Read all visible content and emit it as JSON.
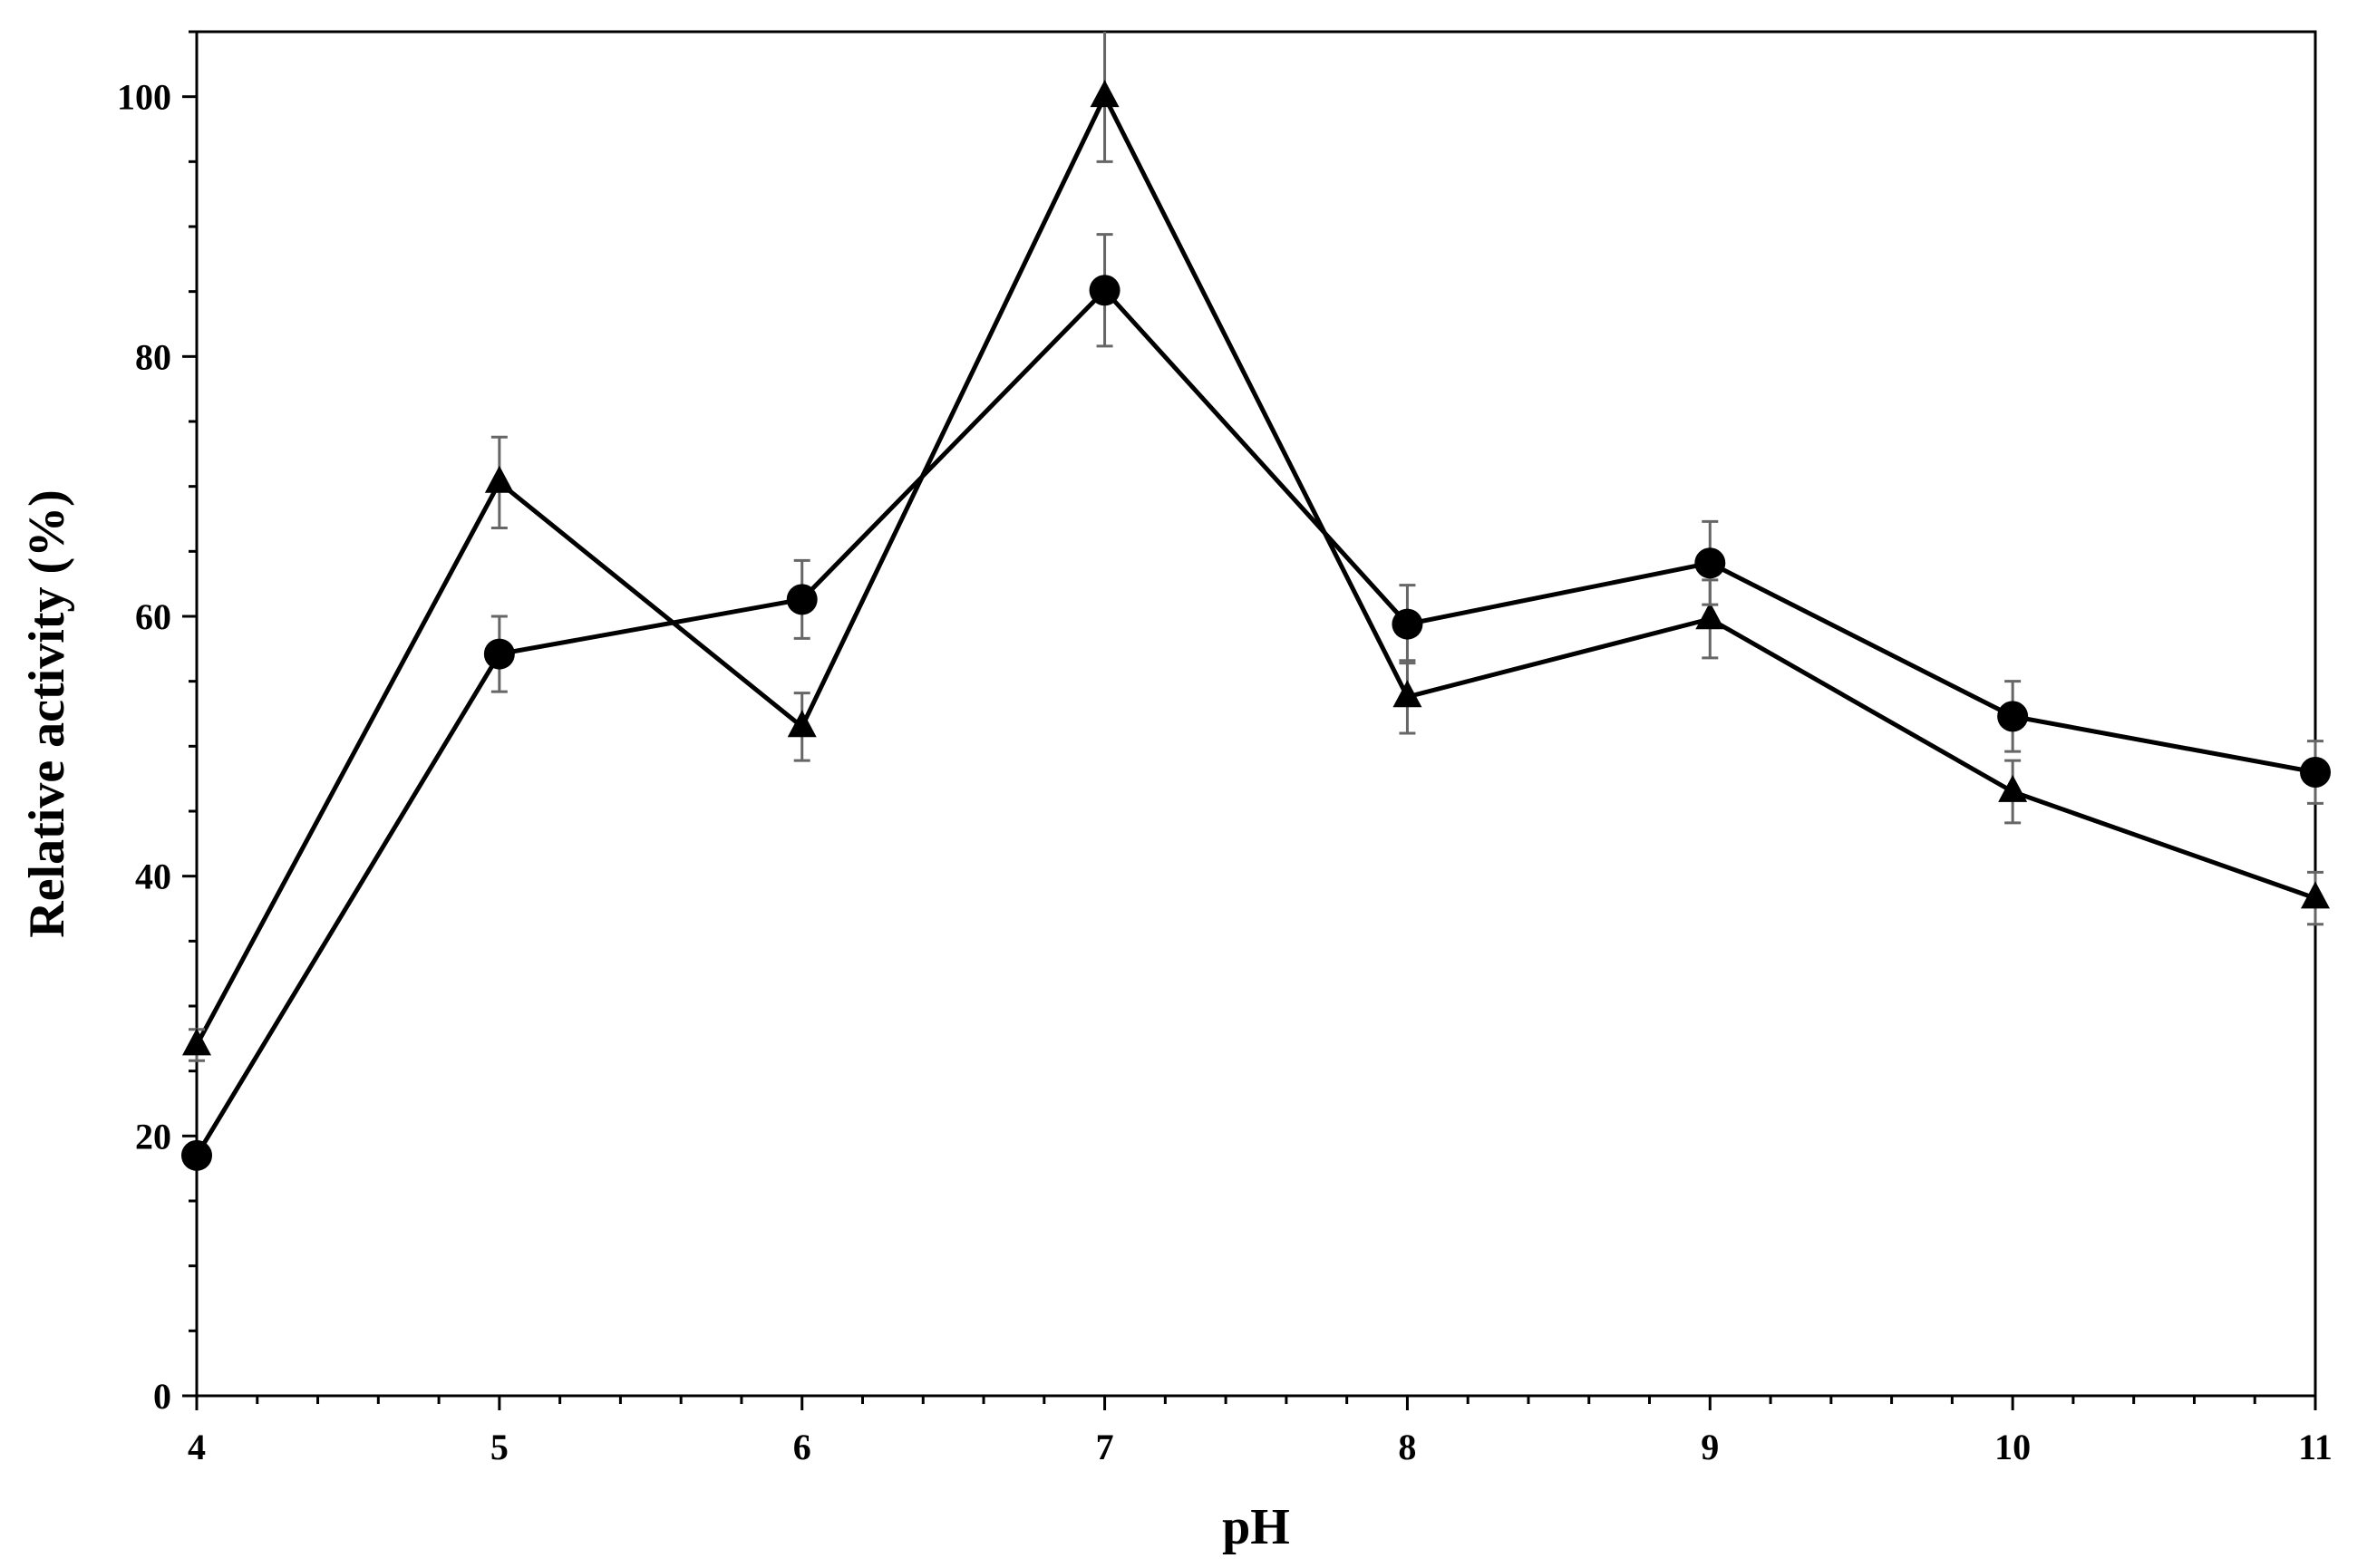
{
  "chart_data": {
    "type": "line",
    "title": "",
    "xlabel": "pH",
    "ylabel": "Relative activity (%)",
    "xlim": [
      4,
      11
    ],
    "ylim": [
      0,
      105
    ],
    "x_ticks": [
      4,
      5,
      6,
      7,
      8,
      9,
      10,
      11
    ],
    "y_ticks": [
      0,
      20,
      40,
      60,
      80,
      100
    ],
    "x_minor_step": 0.2,
    "y_minor_step": 5,
    "grid": false,
    "legend": "none",
    "series": [
      {
        "marker": "triangle",
        "color": "#000000",
        "x": [
          4,
          5,
          6,
          7,
          8,
          9,
          10,
          11
        ],
        "values": [
          27,
          70.3,
          51.5,
          100,
          53.8,
          59.8,
          46.5,
          38.3
        ],
        "errors": [
          1.2,
          3.5,
          2.6,
          5.0,
          2.8,
          3.0,
          2.4,
          2.0
        ]
      },
      {
        "marker": "circle",
        "color": "#000000",
        "x": [
          4,
          5,
          6,
          7,
          8,
          9,
          10,
          11
        ],
        "values": [
          18.5,
          57.1,
          61.3,
          85.1,
          59.4,
          64.1,
          52.3,
          48.0
        ],
        "errors": [
          0.6,
          2.9,
          3.0,
          4.3,
          3.0,
          3.2,
          2.7,
          2.4
        ]
      }
    ],
    "error_bar_color": "#666666"
  }
}
